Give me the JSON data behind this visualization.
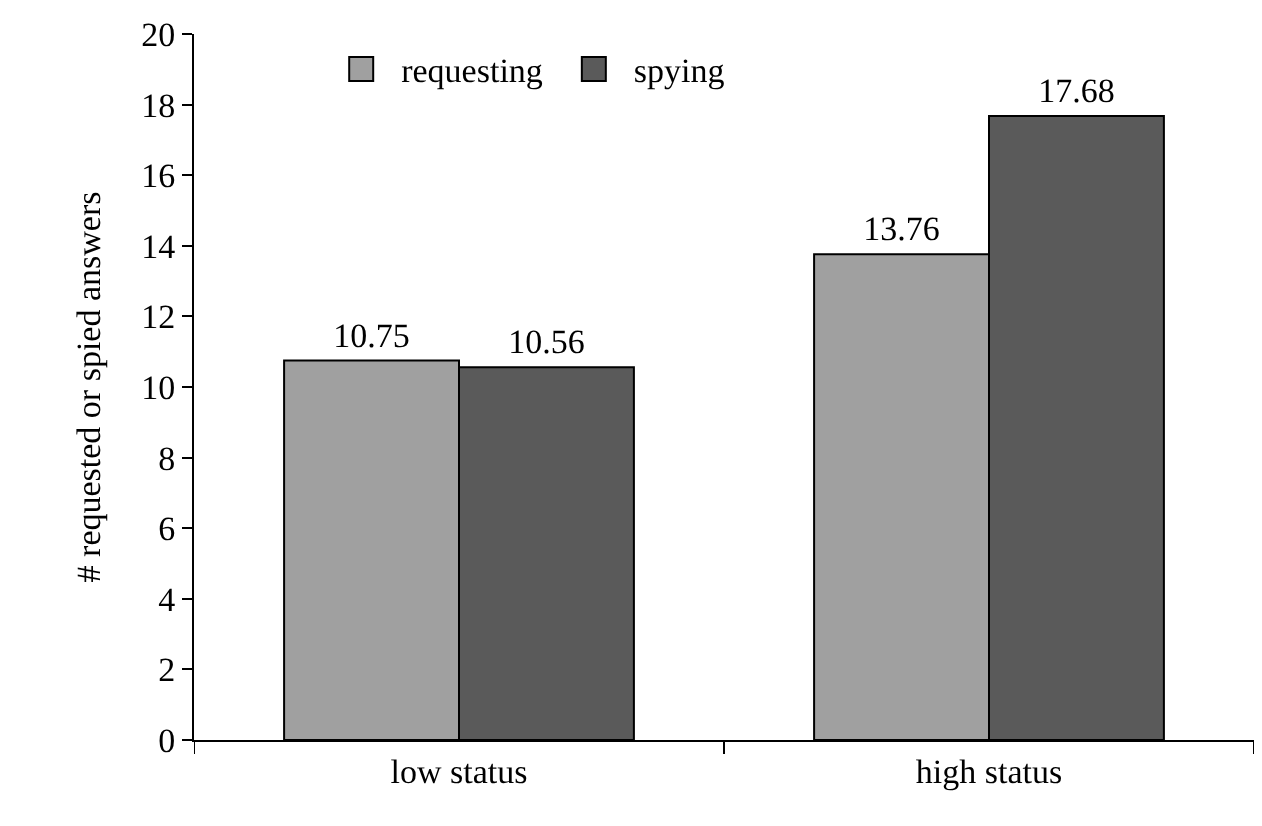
{
  "chart_data": {
    "type": "bar",
    "ylabel": "# requested or spied answers",
    "categories": [
      "low status",
      "high status"
    ],
    "series": [
      {
        "name": "requesting",
        "color": "#a0a0a0",
        "values": [
          10.75,
          13.76
        ]
      },
      {
        "name": "spying",
        "color": "#5a5a5a",
        "values": [
          10.56,
          17.68
        ]
      }
    ],
    "ylim": [
      0,
      20
    ],
    "yticks": [
      0,
      2,
      4,
      6,
      8,
      10,
      12,
      14,
      16,
      18,
      20
    ],
    "legend": "top",
    "data_labels": true
  }
}
